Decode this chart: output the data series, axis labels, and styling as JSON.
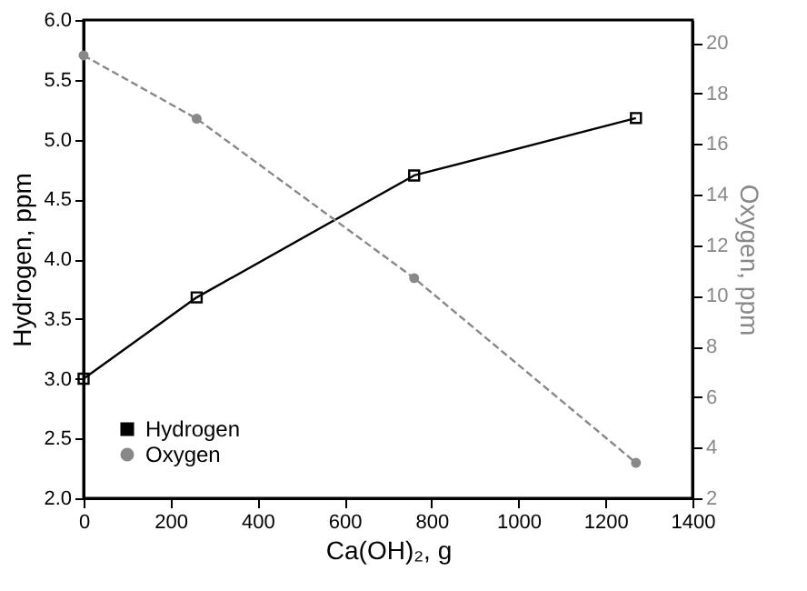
{
  "chart_data": {
    "type": "line",
    "xlabel": "Ca(OH)₂, g",
    "ylabel": "Hydrogen, ppm",
    "y2label": "Oxygen, ppm",
    "xlim": [
      0,
      1400
    ],
    "xticks": [
      0,
      200,
      400,
      600,
      800,
      1000,
      1200,
      1400
    ],
    "ylim": [
      2.0,
      6.0
    ],
    "yticks": [
      {
        "value": 2,
        "label": "2.0"
      },
      {
        "value": 2.5,
        "label": "2.5"
      },
      {
        "value": 3,
        "label": "3.0"
      },
      {
        "value": 3.5,
        "label": "3.5"
      },
      {
        "value": 4,
        "label": "4.0"
      },
      {
        "value": 4.5,
        "label": "4.5"
      },
      {
        "value": 5,
        "label": "5.0"
      },
      {
        "value": 5.5,
        "label": "5.5"
      },
      {
        "value": 6,
        "label": "6.0"
      }
    ],
    "y2lim": [
      2,
      20.9
    ],
    "y2ticks": [
      2,
      4,
      6,
      8,
      10,
      12,
      14,
      16,
      18,
      20
    ],
    "grid": false,
    "legend": "bottom left",
    "series": [
      {
        "name": "Hydrogen",
        "color": "#000000",
        "x": [
          0,
          260,
          760,
          1270
        ],
        "values": [
          3.0,
          3.68,
          4.7,
          5.18
        ],
        "marker": "square",
        "line_style": "solid"
      },
      {
        "name": "Oxygen",
        "color": "#888888",
        "x": [
          0,
          260,
          760,
          1270
        ],
        "values": [
          19.5,
          17.0,
          10.7,
          3.4
        ],
        "marker": "circle",
        "line_style": "dashed",
        "axis": "y2"
      }
    ]
  }
}
